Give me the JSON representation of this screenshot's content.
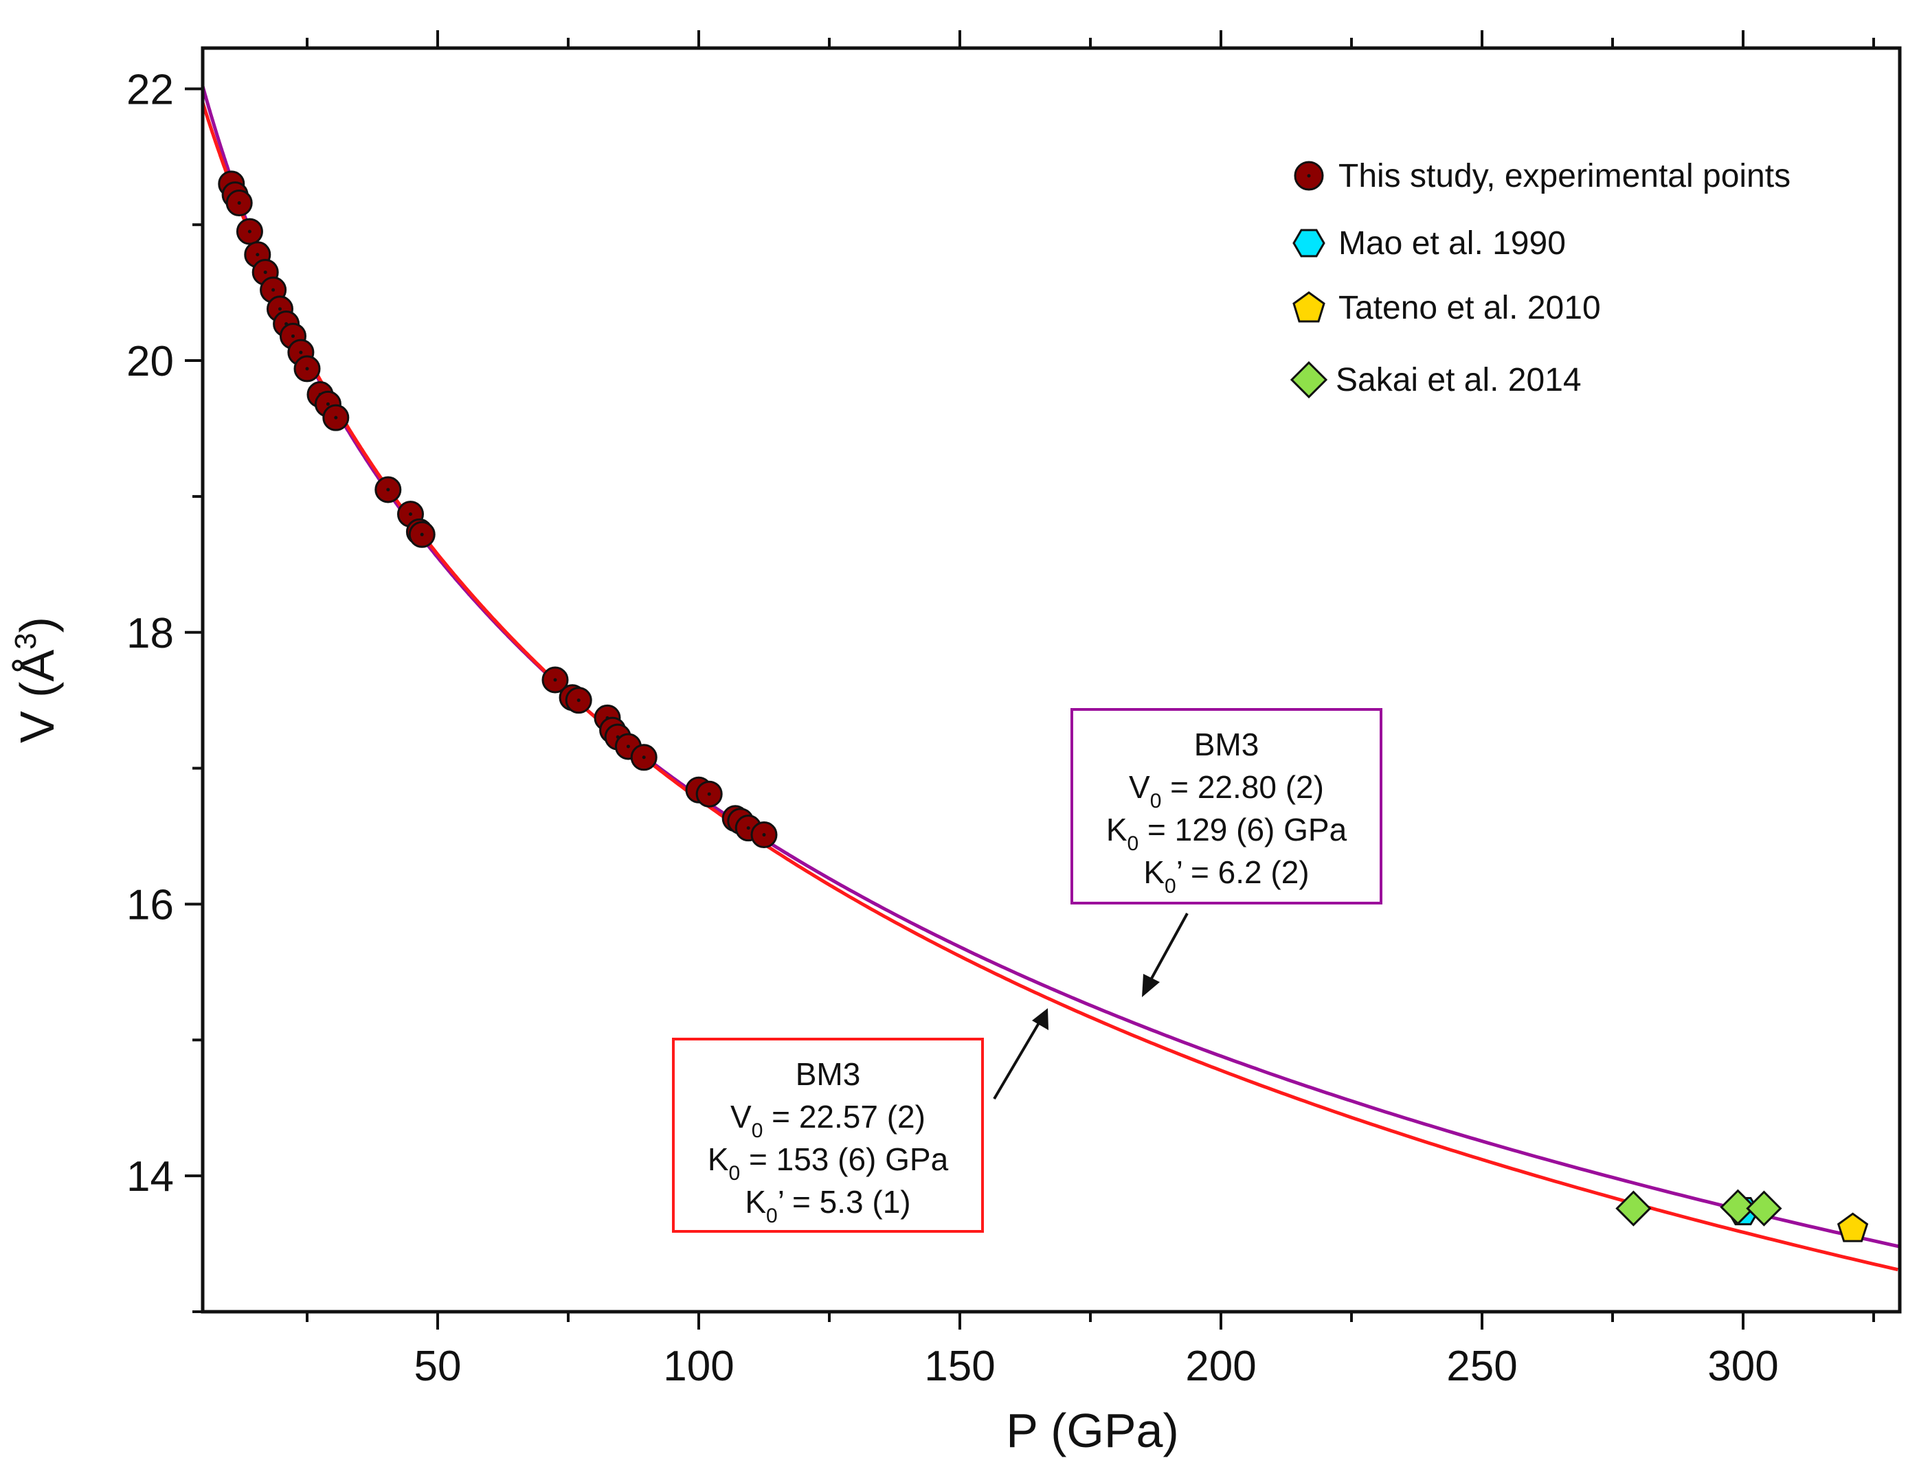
{
  "chart_data": {
    "type": "scatter",
    "title": "",
    "xlabel": "P (GPa)",
    "ylabel_main": "V (Å",
    "ylabel_sup": "3",
    "ylabel_close": ")",
    "xlim": [
      5,
      330
    ],
    "ylim": [
      13,
      22.3
    ],
    "x_ticks_major": [
      50,
      100,
      150,
      200,
      250,
      300
    ],
    "x_tick_labels": [
      "50",
      "100",
      "150",
      "200",
      "250",
      "300"
    ],
    "x_ticks_minor": [
      25,
      75,
      125,
      175,
      225,
      275,
      325
    ],
    "y_ticks_major": [
      14,
      16,
      18,
      20,
      22
    ],
    "y_tick_labels": [
      "14",
      "16",
      "18",
      "20",
      "22"
    ],
    "y_ticks_minor": [
      13,
      15,
      17,
      19,
      21
    ],
    "grid": false,
    "legend_position": "top-right",
    "series": [
      {
        "name": "This study, experimental points",
        "marker": "circle",
        "color": "#8b0000",
        "points": [
          [
            10.5,
            21.3
          ],
          [
            11.2,
            21.22
          ],
          [
            12.0,
            21.16
          ],
          [
            14.0,
            20.95
          ],
          [
            15.5,
            20.78
          ],
          [
            17.0,
            20.65
          ],
          [
            18.5,
            20.52
          ],
          [
            19.8,
            20.38
          ],
          [
            21.0,
            20.27
          ],
          [
            22.3,
            20.18
          ],
          [
            23.8,
            20.06
          ],
          [
            25.0,
            19.94
          ],
          [
            27.5,
            19.75
          ],
          [
            29.0,
            19.68
          ],
          [
            30.5,
            19.58
          ],
          [
            40.5,
            19.05
          ],
          [
            44.8,
            18.87
          ],
          [
            46.5,
            18.74
          ],
          [
            47.0,
            18.72
          ],
          [
            72.5,
            17.65
          ],
          [
            75.8,
            17.52
          ],
          [
            77.0,
            17.5
          ],
          [
            82.5,
            17.37
          ],
          [
            83.5,
            17.28
          ],
          [
            84.5,
            17.23
          ],
          [
            86.5,
            17.16
          ],
          [
            89.5,
            17.08
          ],
          [
            100.0,
            16.84
          ],
          [
            102.0,
            16.81
          ],
          [
            107.0,
            16.63
          ],
          [
            108.0,
            16.61
          ],
          [
            109.5,
            16.56
          ],
          [
            112.5,
            16.51
          ]
        ]
      },
      {
        "name": "Mao et al. 1990",
        "marker": "hexagon",
        "color": "#00e5ff",
        "points": [
          [
            300.0,
            13.74
          ]
        ]
      },
      {
        "name": "Tateno et al. 2010",
        "marker": "pentagon",
        "color": "#ffd700",
        "points": [
          [
            321.0,
            13.61
          ]
        ]
      },
      {
        "name": "Sakai et al. 2014",
        "marker": "diamond",
        "color": "#8fe04a",
        "points": [
          [
            279.0,
            13.76
          ],
          [
            299.0,
            13.77
          ],
          [
            304.0,
            13.76
          ]
        ]
      }
    ],
    "fits": [
      {
        "name": "BM3 fit (purple)",
        "color": "#9b0e9b",
        "model": "BM3",
        "V0": 22.8,
        "K0": 129,
        "K0p": 6.2,
        "box_title": "BM3",
        "v0_label": "V",
        "v0_value": " = 22.80 (2)",
        "k0_label": "K",
        "k0_value": " = 129 (6) GPa",
        "k0p_label": "K",
        "k0p_value": "’ = 6.2 (2)",
        "subscript": "0"
      },
      {
        "name": "BM3 fit (red)",
        "color": "#ff1a1a",
        "model": "BM3",
        "V0": 22.57,
        "K0": 153,
        "K0p": 5.3,
        "box_title": "BM3",
        "v0_label": "V",
        "v0_value": " = 22.57 (2)",
        "k0_label": "K",
        "k0_value": " = 153 (6) GPa",
        "k0p_label": "K",
        "k0p_value": "’ = 5.3 (1)",
        "subscript": "0"
      }
    ]
  }
}
